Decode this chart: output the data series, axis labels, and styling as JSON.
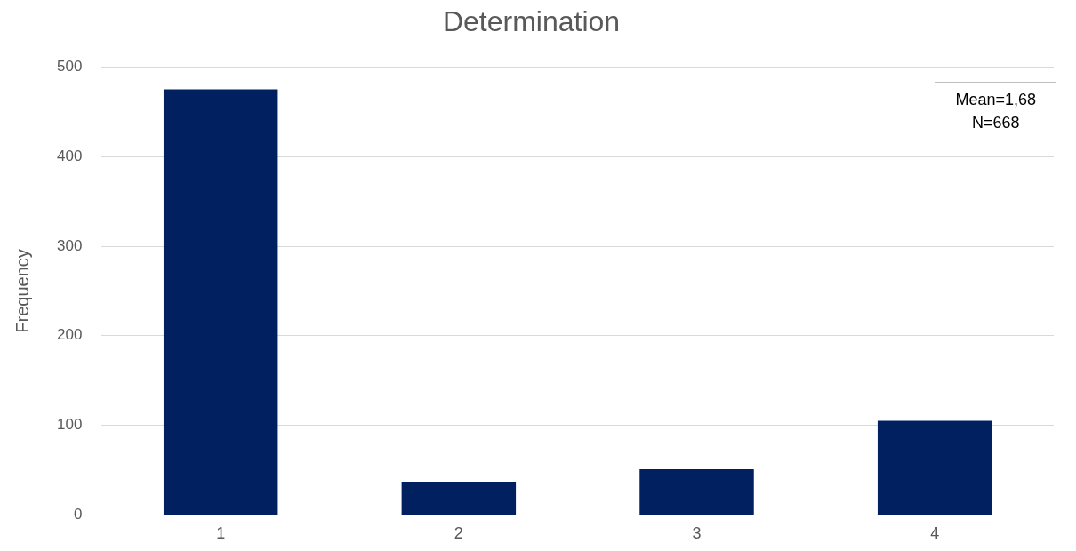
{
  "chart_data": {
    "type": "bar",
    "title": "Determination",
    "ylabel": "Frequency",
    "categories": [
      "1",
      "2",
      "3",
      "4"
    ],
    "values": [
      475,
      37,
      51,
      105
    ],
    "color": "#002060",
    "ylim": [
      0,
      500
    ],
    "yticks": [
      0,
      100,
      200,
      300,
      400,
      500
    ],
    "grid": "y",
    "annotations": [
      "Mean=1,68",
      "N=668"
    ]
  }
}
